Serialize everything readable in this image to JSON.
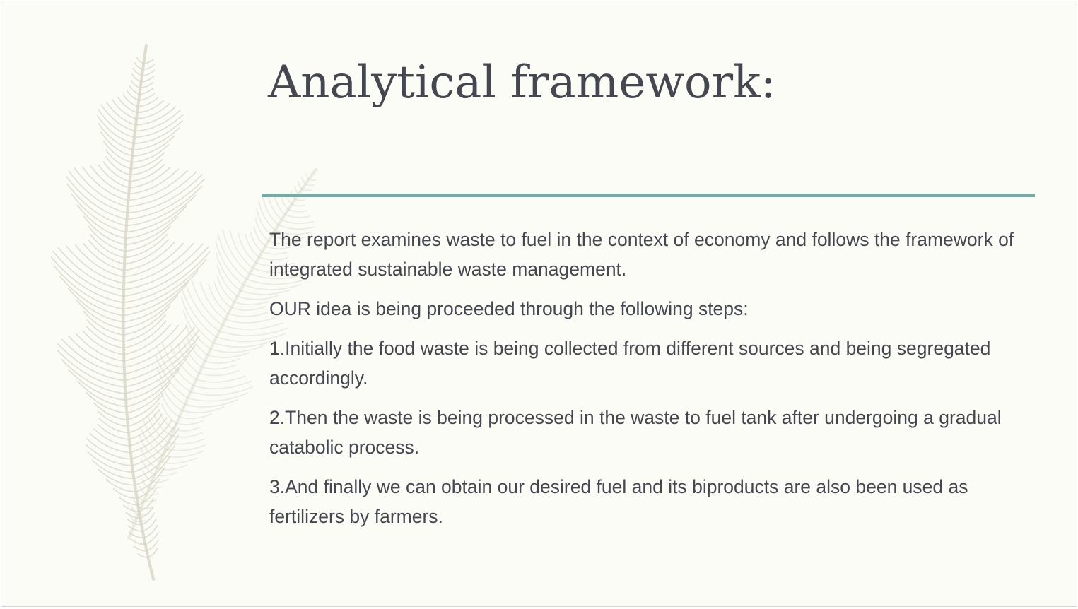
{
  "slide": {
    "title": "Analytical framework:",
    "paragraphs": [
      "The report examines waste to fuel in the context of economy and follows the framework of integrated sustainable waste management.",
      "OUR idea is being proceeded through the following steps:",
      "1.Initially the food waste is being collected from different sources and being segregated accordingly.",
      "2.Then the waste is being processed in the waste to fuel tank after undergoing a gradual catabolic process.",
      "3.And finally we can obtain our desired fuel and its biproducts are also been used as fertilizers by farmers."
    ]
  },
  "colors": {
    "background": "#fcfcf7",
    "text": "#44474f",
    "accent_rule": "#7ba8a0",
    "feather": "#d9d7c8"
  },
  "decoration": {
    "background_art": "feather-illustration"
  }
}
